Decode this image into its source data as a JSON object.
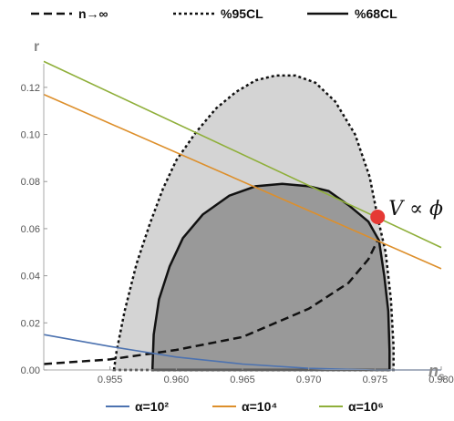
{
  "chart_data": {
    "type": "line",
    "xlabel": "n_s",
    "ylabel": "r",
    "xlim": [
      0.95,
      0.98
    ],
    "ylim": [
      0.0,
      0.13
    ],
    "x_ticks": [
      0.955,
      0.96,
      0.965,
      0.97,
      0.975,
      0.98
    ],
    "y_ticks": [
      0.0,
      0.02,
      0.04,
      0.06,
      0.08,
      0.1,
      0.12
    ],
    "grid": false,
    "legend_top": {
      "placement": "top",
      "entries": [
        {
          "name": "n→∞",
          "style": "dashed"
        },
        {
          "name": "%95CL",
          "style": "dotted"
        },
        {
          "name": "%68CL",
          "style": "solid"
        }
      ]
    },
    "legend_bottom": {
      "placement": "bottom",
      "entries": [
        {
          "name": "α=10²",
          "color": "#4c72b0"
        },
        {
          "name": "α=10⁴",
          "color": "#dd8f2b"
        },
        {
          "name": "α=10⁶",
          "color": "#8faf3a"
        }
      ]
    },
    "regions": [
      {
        "name": "%95CL",
        "fill": "#d4d4d4",
        "line": "dotted",
        "points": [
          [
            0.9553,
            0.0
          ],
          [
            0.9555,
            0.008
          ],
          [
            0.9561,
            0.025
          ],
          [
            0.957,
            0.045
          ],
          [
            0.958,
            0.062
          ],
          [
            0.959,
            0.077
          ],
          [
            0.96,
            0.089
          ],
          [
            0.9615,
            0.101
          ],
          [
            0.963,
            0.111
          ],
          [
            0.9645,
            0.118
          ],
          [
            0.966,
            0.123
          ],
          [
            0.9675,
            0.125
          ],
          [
            0.969,
            0.125
          ],
          [
            0.9705,
            0.122
          ],
          [
            0.972,
            0.114
          ],
          [
            0.9735,
            0.1
          ],
          [
            0.9746,
            0.082
          ],
          [
            0.9752,
            0.065
          ],
          [
            0.9758,
            0.05
          ],
          [
            0.9762,
            0.03
          ],
          [
            0.9764,
            0.01
          ],
          [
            0.9764,
            0.0
          ]
        ]
      },
      {
        "name": "%68CL",
        "fill": "#999999",
        "line": "solid",
        "points": [
          [
            0.9582,
            0.0
          ],
          [
            0.9583,
            0.015
          ],
          [
            0.9587,
            0.03
          ],
          [
            0.9595,
            0.044
          ],
          [
            0.9605,
            0.056
          ],
          [
            0.962,
            0.066
          ],
          [
            0.964,
            0.074
          ],
          [
            0.966,
            0.078
          ],
          [
            0.968,
            0.079
          ],
          [
            0.97,
            0.078
          ],
          [
            0.9715,
            0.076
          ],
          [
            0.973,
            0.07
          ],
          [
            0.9745,
            0.063
          ],
          [
            0.9753,
            0.055
          ],
          [
            0.9757,
            0.04
          ],
          [
            0.976,
            0.025
          ],
          [
            0.9761,
            0.008
          ],
          [
            0.9761,
            0.0
          ]
        ]
      }
    ],
    "series": [
      {
        "name": "n→∞",
        "color": "#111111",
        "style": "dashed",
        "points": [
          [
            0.95,
            0.0025
          ],
          [
            0.955,
            0.0045
          ],
          [
            0.96,
            0.0085
          ],
          [
            0.965,
            0.014
          ],
          [
            0.97,
            0.026
          ],
          [
            0.973,
            0.037
          ],
          [
            0.9745,
            0.047
          ],
          [
            0.9752,
            0.055
          ]
        ]
      },
      {
        "name": "α=10²",
        "color": "#4c72b0",
        "points": [
          [
            0.95,
            0.015
          ],
          [
            0.955,
            0.01
          ],
          [
            0.96,
            0.0055
          ],
          [
            0.965,
            0.0025
          ],
          [
            0.97,
            0.0007
          ],
          [
            0.975,
            0.0
          ],
          [
            0.98,
            0.0
          ]
        ]
      },
      {
        "name": "α=10⁴",
        "color": "#dd8f2b",
        "points": [
          [
            0.95,
            0.117
          ],
          [
            0.98,
            0.043
          ]
        ]
      },
      {
        "name": "α=10⁶",
        "color": "#8faf3a",
        "points": [
          [
            0.95,
            0.131
          ],
          [
            0.98,
            0.052
          ]
        ]
      }
    ],
    "marker": {
      "x": 0.9752,
      "y": 0.065,
      "color": "#e53935",
      "label": "V ∝ ϕ"
    }
  }
}
